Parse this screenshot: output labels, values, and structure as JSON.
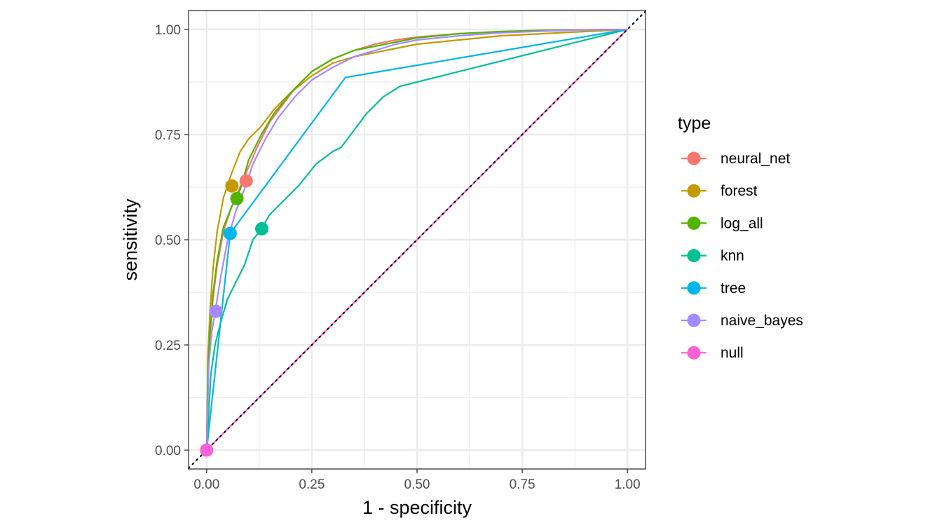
{
  "chart_data": {
    "type": "line",
    "title": "",
    "xlabel": "1 - specificity",
    "ylabel": "sensitivity",
    "xlim": [
      -0.043,
      1.043
    ],
    "ylim": [
      -0.045,
      1.045
    ],
    "x_ticks": [
      0,
      0.25,
      0.5,
      0.75,
      1
    ],
    "y_ticks": [
      0,
      0.25,
      0.5,
      0.75,
      1
    ],
    "x_tick_labels": [
      "0.00",
      "0.25",
      "0.50",
      "0.75",
      "1.00"
    ],
    "y_tick_labels": [
      "0.00",
      "0.25",
      "0.50",
      "0.75",
      "1.00"
    ],
    "grid": true,
    "reference_line": {
      "style": "dotted",
      "from": [
        -0.043,
        -0.043
      ],
      "to": [
        1.043,
        1.043
      ],
      "color": "#000000"
    },
    "legend": {
      "title": "type",
      "position": "right"
    },
    "series": [
      {
        "name": "neural_net",
        "color": "#F8766D",
        "x": [
          0,
          0.003,
          0.008,
          0.015,
          0.025,
          0.04,
          0.06,
          0.09,
          0.12,
          0.15,
          0.18,
          0.21,
          0.25,
          0.3,
          0.35,
          0.4,
          0.45,
          0.5,
          0.6,
          0.7,
          0.8,
          0.9,
          1
        ],
        "y": [
          0,
          0.18,
          0.27,
          0.36,
          0.44,
          0.52,
          0.58,
          0.65,
          0.72,
          0.78,
          0.82,
          0.86,
          0.9,
          0.93,
          0.95,
          0.965,
          0.975,
          0.982,
          0.99,
          0.995,
          0.998,
          0.999,
          1
        ],
        "threshold_point": [
          0.094,
          0.64
        ]
      },
      {
        "name": "forest",
        "color": "#C49A00",
        "x": [
          0,
          0.003,
          0.008,
          0.015,
          0.025,
          0.04,
          0.06,
          0.08,
          0.1,
          0.13,
          0.16,
          0.2,
          0.25,
          0.3,
          0.35,
          0.4,
          0.45,
          0.5,
          0.55,
          0.6,
          0.65,
          0.7,
          0.8,
          0.9,
          1
        ],
        "y": [
          0,
          0.22,
          0.33,
          0.43,
          0.52,
          0.6,
          0.66,
          0.71,
          0.74,
          0.77,
          0.81,
          0.85,
          0.89,
          0.92,
          0.935,
          0.945,
          0.955,
          0.965,
          0.97,
          0.975,
          0.98,
          0.985,
          0.99,
          0.995,
          1
        ],
        "threshold_point": [
          0.06,
          0.628
        ]
      },
      {
        "name": "log_all",
        "color": "#53B400",
        "x": [
          0,
          0.003,
          0.008,
          0.015,
          0.025,
          0.04,
          0.06,
          0.08,
          0.1,
          0.13,
          0.16,
          0.2,
          0.25,
          0.3,
          0.35,
          0.4,
          0.45,
          0.5,
          0.6,
          0.7,
          0.8,
          0.9,
          1
        ],
        "y": [
          0,
          0.19,
          0.28,
          0.37,
          0.45,
          0.53,
          0.58,
          0.62,
          0.69,
          0.75,
          0.8,
          0.85,
          0.9,
          0.93,
          0.95,
          0.96,
          0.97,
          0.98,
          0.99,
          0.995,
          0.998,
          0.999,
          1
        ],
        "threshold_point": [
          0.072,
          0.598
        ]
      },
      {
        "name": "knn",
        "color": "#00C094",
        "x": [
          0,
          0.01,
          0.02,
          0.035,
          0.05,
          0.07,
          0.09,
          0.11,
          0.13,
          0.15,
          0.18,
          0.22,
          0.26,
          0.3,
          0.32,
          0.35,
          0.38,
          0.42,
          0.46,
          1
        ],
        "y": [
          0,
          0.18,
          0.25,
          0.31,
          0.36,
          0.4,
          0.44,
          0.5,
          0.525,
          0.56,
          0.59,
          0.63,
          0.68,
          0.71,
          0.72,
          0.76,
          0.8,
          0.84,
          0.865,
          1
        ],
        "threshold_point": [
          0.131,
          0.526
        ]
      },
      {
        "name": "tree",
        "color": "#00B6EB",
        "x": [
          0,
          0.056,
          0.33,
          1
        ],
        "y": [
          0,
          0.515,
          0.886,
          1
        ],
        "threshold_point": [
          0.056,
          0.515
        ]
      },
      {
        "name": "naive_bayes",
        "color": "#A58AFF",
        "x": [
          0,
          0.005,
          0.012,
          0.022,
          0.035,
          0.05,
          0.07,
          0.09,
          0.11,
          0.14,
          0.17,
          0.21,
          0.25,
          0.3,
          0.35,
          0.4,
          0.45,
          0.5,
          0.6,
          0.7,
          0.8,
          0.9,
          1
        ],
        "y": [
          0,
          0.2,
          0.28,
          0.34,
          0.42,
          0.5,
          0.57,
          0.62,
          0.68,
          0.74,
          0.79,
          0.84,
          0.88,
          0.91,
          0.935,
          0.95,
          0.965,
          0.975,
          0.985,
          0.992,
          0.996,
          0.999,
          1
        ],
        "threshold_point": [
          0.022,
          0.33
        ]
      },
      {
        "name": "null",
        "color": "#FB61D7",
        "x": [
          0,
          1
        ],
        "y": [
          0,
          1
        ],
        "threshold_point": [
          0,
          0
        ]
      }
    ]
  }
}
